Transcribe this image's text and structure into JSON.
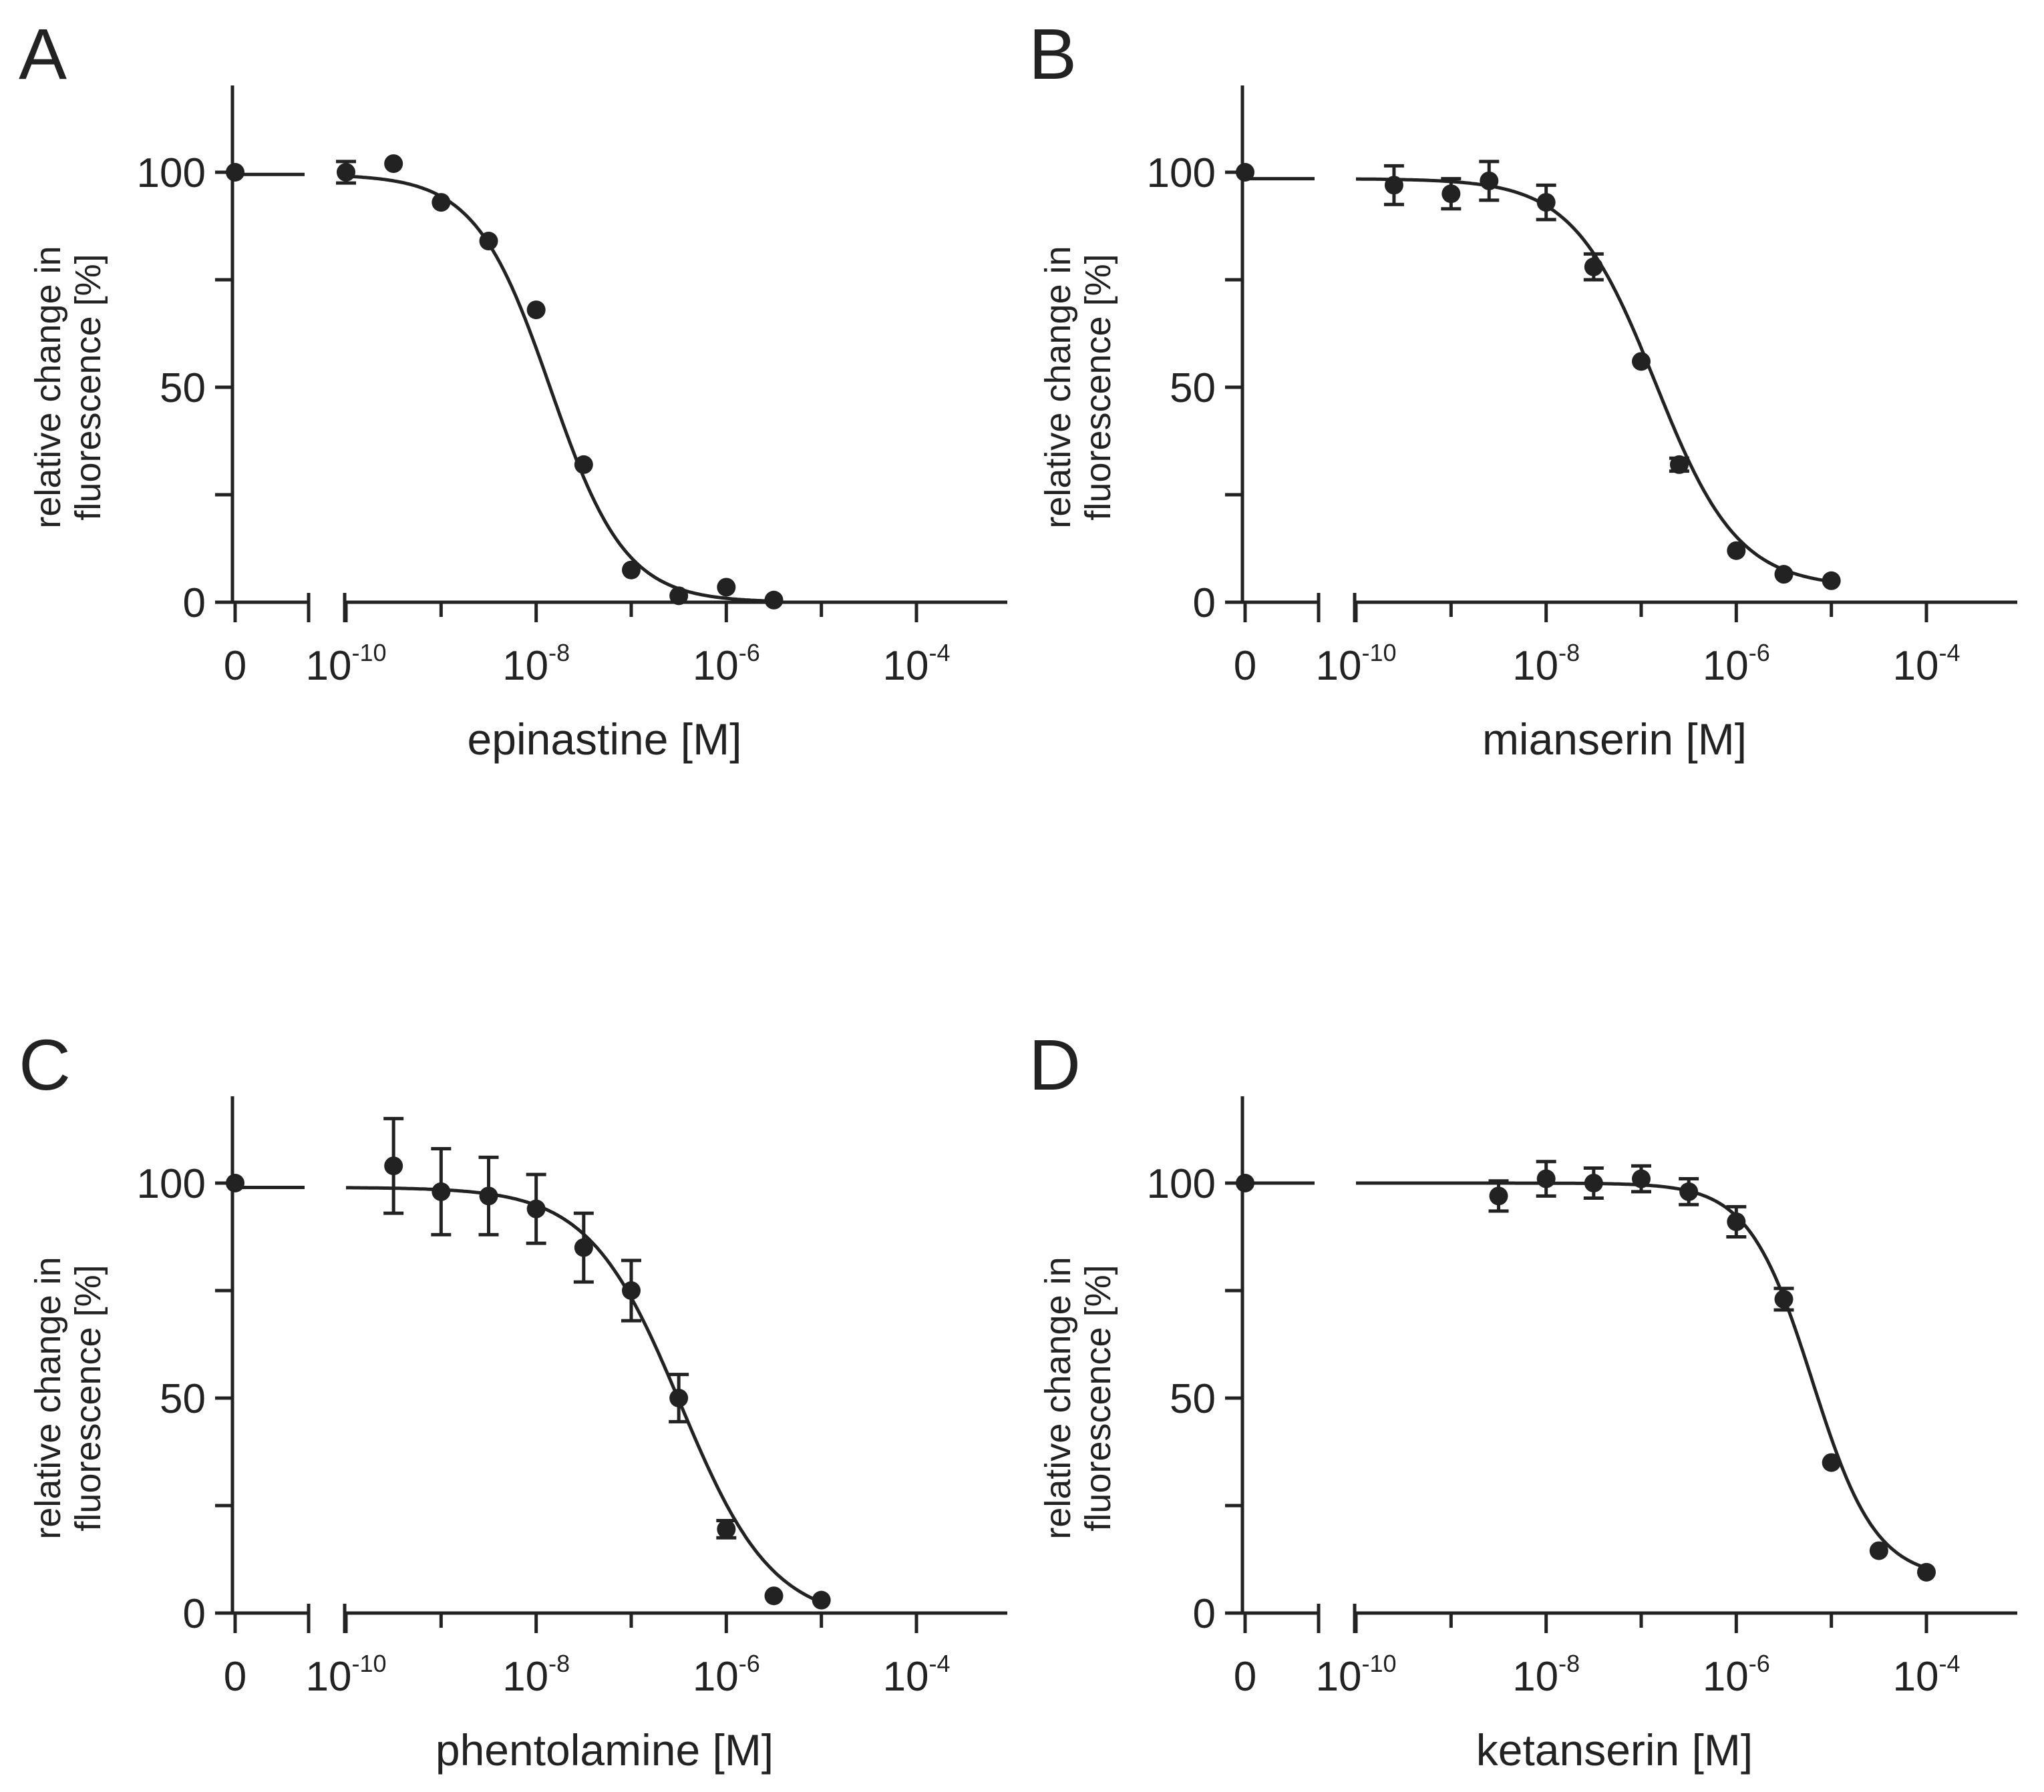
{
  "chart_data": [
    {
      "type": "scatter",
      "panel": "A",
      "xlabel": "epinastine [M]",
      "ylabel": [
        "relative change in",
        "fluorescence [%]"
      ],
      "ylim": [
        0,
        120
      ],
      "xlim_log10": [
        -10.4,
        -3
      ],
      "yticks": [
        0,
        50,
        100
      ],
      "xtick_zero_label": "0",
      "xticks_log10": [
        -10,
        -8,
        -6,
        -4
      ],
      "control": {
        "x": 0,
        "y": 100,
        "err": 0
      },
      "fit": {
        "top": 99.5,
        "bottom": 0,
        "log_ic50": -7.85,
        "hill": 1.1
      },
      "series": [
        {
          "name": "epinastine",
          "x_log10": [
            -10,
            -9.5,
            -9,
            -8.5,
            -8,
            -7.5,
            -7,
            -6.5,
            -6,
            -5.5
          ],
          "y": [
            100,
            102,
            93,
            84,
            68,
            32,
            7.5,
            1.5,
            3.5,
            0.5
          ],
          "err": [
            2.5,
            1,
            1,
            1,
            1,
            1,
            1,
            1,
            1,
            1
          ]
        }
      ]
    },
    {
      "type": "scatter",
      "panel": "B",
      "xlabel": "mianserin [M]",
      "ylabel": [
        "relative change in",
        "fluorescence [%]"
      ],
      "ylim": [
        0,
        120
      ],
      "xlim_log10": [
        -10.4,
        -3
      ],
      "yticks": [
        0,
        50,
        100
      ],
      "xtick_zero_label": "0",
      "xticks_log10": [
        -10,
        -8,
        -6,
        -4
      ],
      "control": {
        "x": 0,
        "y": 100,
        "err": 0
      },
      "fit": {
        "top": 98.5,
        "bottom": 3.5,
        "log_ic50": -6.85,
        "hill": 1.0
      },
      "series": [
        {
          "name": "mianserin",
          "x_log10": [
            -9.6,
            -9,
            -8.6,
            -8,
            -7.5,
            -7,
            -6.6,
            -6,
            -5.5,
            -5
          ],
          "y": [
            97,
            95,
            98,
            93,
            78,
            56,
            32,
            12,
            6.5,
            5
          ],
          "err": [
            4.5,
            3.5,
            4.5,
            4,
            3,
            1,
            1.5,
            1,
            1,
            1
          ]
        }
      ]
    },
    {
      "type": "scatter",
      "panel": "C",
      "xlabel": "phentolamine [M]",
      "ylabel": [
        "relative change in",
        "fluorescence [%]"
      ],
      "ylim": [
        0,
        120
      ],
      "xlim_log10": [
        -10.4,
        -3
      ],
      "yticks": [
        0,
        50,
        100
      ],
      "xtick_zero_label": "0",
      "xticks_log10": [
        -10,
        -8,
        -6,
        -4
      ],
      "control": {
        "x": 0,
        "y": 100,
        "err": 0
      },
      "fit": {
        "top": 99,
        "bottom": -2,
        "log_ic50": -6.48,
        "hill": 0.9
      },
      "series": [
        {
          "name": "phentolamine",
          "x_log10": [
            -9.5,
            -9,
            -8.5,
            -8,
            -7.5,
            -7,
            -6.5,
            -6,
            -5.5,
            -5
          ],
          "y": [
            104,
            98,
            97,
            94,
            85,
            75,
            50,
            19.5,
            4,
            3
          ],
          "err": [
            11,
            10,
            9,
            8,
            8,
            7,
            5.5,
            2,
            1,
            1
          ]
        }
      ]
    },
    {
      "type": "scatter",
      "panel": "D",
      "xlabel": "ketanserin [M]",
      "ylabel": [
        "relative change in",
        "fluorescence [%]"
      ],
      "ylim": [
        0,
        120
      ],
      "xlim_log10": [
        -10.4,
        -3
      ],
      "yticks": [
        0,
        50,
        100
      ],
      "xtick_zero_label": "0",
      "xticks_log10": [
        -10,
        -8,
        -6,
        -4
      ],
      "control": {
        "x": 0,
        "y": 100,
        "err": 0
      },
      "fit": {
        "top": 100,
        "bottom": 8,
        "log_ic50": -5.2,
        "hill": 1.3
      },
      "series": [
        {
          "name": "ketanserin",
          "x_log10": [
            -8.5,
            -8,
            -7.5,
            -7,
            -6.5,
            -6,
            -5.5,
            -5,
            -4.5,
            -4
          ],
          "y": [
            97,
            101,
            100,
            101,
            98,
            91,
            73,
            35,
            14.5,
            9.5
          ],
          "err": [
            3.5,
            4,
            3.5,
            3,
            3,
            3.5,
            2.5,
            1,
            1,
            1
          ]
        }
      ]
    }
  ]
}
